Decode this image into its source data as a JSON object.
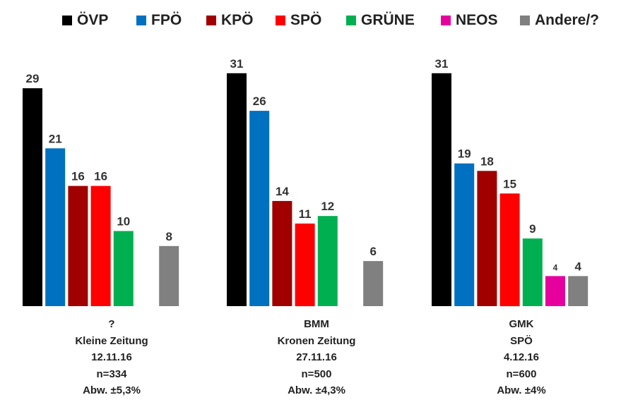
{
  "legend": [
    {
      "label": "ÖVP",
      "color": "#000000"
    },
    {
      "label": "FPÖ",
      "color": "#0070c0"
    },
    {
      "label": "KPÖ",
      "color": "#a00000"
    },
    {
      "label": "SPÖ",
      "color": "#ff0000"
    },
    {
      "label": "GRÜNE",
      "color": "#00b050"
    },
    {
      "label": "NEOS",
      "color": "#e6009e"
    },
    {
      "label": "Andere/?",
      "color": "#808080"
    }
  ],
  "chart_data": [
    {
      "type": "bar",
      "categories": [
        "ÖVP",
        "FPÖ",
        "KPÖ",
        "SPÖ",
        "GRÜNE",
        "NEOS",
        "Andere/?"
      ],
      "values": [
        29,
        21,
        16,
        16,
        10,
        null,
        8
      ],
      "value_labels": [
        "29",
        "21",
        "16",
        "16",
        "10",
        "",
        "8"
      ],
      "caption": [
        "?",
        "Kleine Zeitung",
        "12.11.16",
        "n=334",
        "Abw. ±5,3%"
      ]
    },
    {
      "type": "bar",
      "categories": [
        "ÖVP",
        "FPÖ",
        "KPÖ",
        "SPÖ",
        "GRÜNE",
        "NEOS",
        "Andere/?"
      ],
      "values": [
        31,
        26,
        14,
        11,
        12,
        null,
        6
      ],
      "value_labels": [
        "31",
        "26",
        "14",
        "11",
        "12",
        "",
        "6"
      ],
      "caption": [
        "BMM",
        "Kronen Zeitung",
        "27.11.16",
        "n=500",
        "Abw. ±4,3%"
      ]
    },
    {
      "type": "bar",
      "categories": [
        "ÖVP",
        "FPÖ",
        "KPÖ",
        "SPÖ",
        "GRÜNE",
        "NEOS",
        "Andere/?"
      ],
      "values": [
        31,
        19,
        18,
        15,
        9,
        4,
        4
      ],
      "value_labels": [
        "31",
        "19",
        "18",
        "15",
        "9",
        "4",
        "4"
      ],
      "caption": [
        "GMK",
        "SPÖ",
        "4.12.16",
        "n=600",
        "Abw. ±4%"
      ]
    }
  ]
}
